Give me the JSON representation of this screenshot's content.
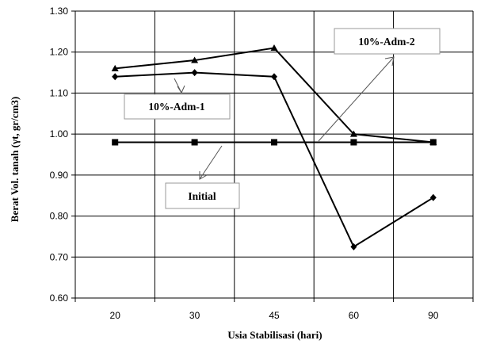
{
  "chart_data": {
    "type": "line",
    "categories": [
      "20",
      "30",
      "45",
      "60",
      "90"
    ],
    "xlabel": "Usia Stabilisasi (hari)",
    "ylabel": "Berat Vol. tanah (γt, gr/cm3)",
    "ylim": [
      0.6,
      1.3
    ],
    "yticks": [
      "0.60",
      "0.70",
      "0.80",
      "0.90",
      "1.00",
      "1.10",
      "1.20",
      "1.30"
    ],
    "grid": true,
    "series": [
      {
        "name": "10%-Adm-2",
        "marker": "triangle",
        "values": [
          1.16,
          1.18,
          1.21,
          1.0,
          0.98
        ]
      },
      {
        "name": "10%-Adm-1",
        "marker": "diamond",
        "values": [
          1.14,
          1.15,
          1.14,
          0.725,
          0.845
        ]
      },
      {
        "name": "Initial",
        "marker": "square",
        "values": [
          0.98,
          0.98,
          0.98,
          0.98,
          0.98
        ]
      }
    ],
    "annotations": [
      {
        "text": "10%-Adm-2",
        "target_series": "10%-Adm-2"
      },
      {
        "text": "10%-Adm-1",
        "target_series": "10%-Adm-1"
      },
      {
        "text": "Initial",
        "target_series": "Initial"
      }
    ]
  }
}
